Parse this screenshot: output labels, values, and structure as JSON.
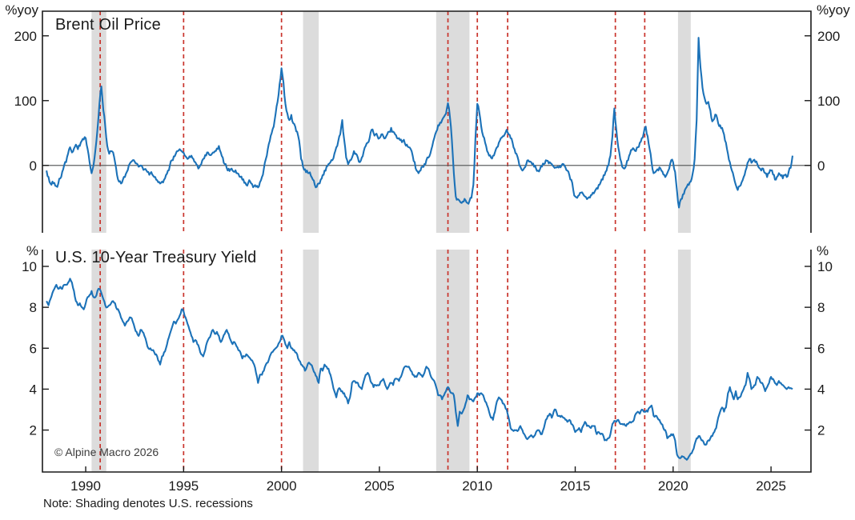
{
  "chart_data": [
    {
      "type": "line",
      "title": "Brent Oil Price",
      "unit_label": "%yoy",
      "ylim": [
        -104,
        238
      ],
      "y_ticks": [
        0,
        100,
        200
      ],
      "zero_line": true,
      "series": [
        {
          "name": "Brent Oil Price YoY %",
          "color": "#1C72B8",
          "x_start": 1988.0,
          "x_step": 0.1,
          "values": [
            -8,
            -18,
            -28,
            -25,
            -27,
            -32,
            -28,
            -20,
            -10,
            0,
            5,
            18,
            28,
            20,
            26,
            32,
            25,
            30,
            38,
            40,
            42,
            25,
            5,
            -12,
            0,
            25,
            55,
            95,
            122,
            85,
            60,
            30,
            18,
            22,
            20,
            5,
            -15,
            -25,
            -28,
            -22,
            -18,
            -10,
            0,
            5,
            8,
            6,
            3,
            -2,
            0,
            -3,
            -6,
            -8,
            -10,
            -12,
            -14,
            -18,
            -22,
            -26,
            -28,
            -25,
            -22,
            -15,
            -8,
            0,
            8,
            14,
            18,
            22,
            25,
            22,
            20,
            14,
            10,
            14,
            15,
            10,
            5,
            0,
            -3,
            2,
            10,
            16,
            20,
            17,
            16,
            20,
            22,
            26,
            30,
            20,
            12,
            2,
            -4,
            -5,
            -6,
            -8,
            -10,
            -12,
            -13,
            -18,
            -22,
            -27,
            -30,
            -27,
            -25,
            -29,
            -32,
            -33,
            -34,
            -26,
            -18,
            -5,
            10,
            25,
            38,
            50,
            60,
            80,
            98,
            125,
            150,
            128,
            95,
            80,
            70,
            78,
            65,
            60,
            52,
            38,
            10,
            -2,
            -6,
            -8,
            -12,
            -16,
            -22,
            -30,
            -33,
            -28,
            -22,
            -15,
            -8,
            -2,
            2,
            5,
            8,
            18,
            28,
            38,
            48,
            70,
            40,
            12,
            2,
            8,
            12,
            22,
            18,
            12,
            5,
            12,
            22,
            30,
            35,
            42,
            55,
            50,
            48,
            45,
            42,
            48,
            45,
            42,
            48,
            52,
            58,
            52,
            48,
            42,
            42,
            40,
            38,
            34,
            32,
            28,
            25,
            15,
            5,
            -8,
            -12,
            -8,
            -2,
            2,
            8,
            12,
            18,
            30,
            42,
            52,
            62,
            66,
            70,
            75,
            80,
            96,
            75,
            40,
            -12,
            -48,
            -52,
            -55,
            -58,
            -56,
            -54,
            -58,
            -55,
            -50,
            -30,
            40,
            95,
            82,
            60,
            45,
            35,
            22,
            15,
            12,
            15,
            20,
            28,
            35,
            42,
            45,
            48,
            55,
            48,
            42,
            35,
            25,
            18,
            8,
            -2,
            -8,
            -4,
            2,
            8,
            6,
            2,
            -2,
            -5,
            -8,
            -6,
            -2,
            2,
            8,
            7,
            5,
            2,
            -2,
            -3,
            -2,
            -1,
            0,
            2,
            -3,
            -8,
            -15,
            -22,
            -38,
            -48,
            -50,
            -46,
            -42,
            -44,
            -48,
            -52,
            -49,
            -46,
            -42,
            -40,
            -35,
            -30,
            -26,
            -22,
            -15,
            -8,
            0,
            15,
            45,
            88,
            55,
            28,
            10,
            -2,
            -5,
            0,
            8,
            18,
            24,
            25,
            22,
            28,
            35,
            42,
            50,
            60,
            45,
            25,
            5,
            -12,
            -10,
            -6,
            -3,
            -8,
            -14,
            -18,
            -12,
            -5,
            8,
            5,
            -10,
            -40,
            -65,
            -52,
            -45,
            -38,
            -33,
            -30,
            -25,
            -12,
            10,
            70,
            197,
            150,
            120,
            105,
            95,
            98,
            85,
            68,
            72,
            78,
            65,
            62,
            58,
            48,
            35,
            18,
            5,
            -8,
            -18,
            -30,
            -38,
            -32,
            -26,
            -18,
            -8,
            4,
            10,
            4,
            8,
            5,
            2,
            -4,
            -8,
            -5,
            -12,
            -18,
            -12,
            -8,
            -14,
            -22,
            -18,
            -12,
            -16,
            -20,
            -15,
            -18,
            -10,
            -4,
            15
          ]
        }
      ]
    },
    {
      "type": "line",
      "title": "U.S. 10-Year Treasury Yield",
      "unit_label": "%",
      "ylim": [
        -0.05,
        10.82
      ],
      "y_ticks": [
        2,
        4,
        6,
        8,
        10
      ],
      "zero_line": false,
      "series": [
        {
          "name": "U.S. 10-Year Treasury Yield %",
          "color": "#1C72B8",
          "x_start": 1988.0,
          "x_step": 0.1,
          "values": [
            8.3,
            8.1,
            8.4,
            8.7,
            8.9,
            9.1,
            8.9,
            9.0,
            8.9,
            9.1,
            9.1,
            9.2,
            9.4,
            9.2,
            8.8,
            8.3,
            8.1,
            8.2,
            8.0,
            7.9,
            8.2,
            8.5,
            8.6,
            8.8,
            8.5,
            8.5,
            8.8,
            8.9,
            8.7,
            8.4,
            8.1,
            8.0,
            8.1,
            8.2,
            8.3,
            8.2,
            7.9,
            7.8,
            7.5,
            7.3,
            7.1,
            7.3,
            7.4,
            7.5,
            7.3,
            7.0,
            6.8,
            6.6,
            6.9,
            6.8,
            6.6,
            6.3,
            6.0,
            6.0,
            5.9,
            5.8,
            5.7,
            5.4,
            5.2,
            5.6,
            5.8,
            6.0,
            6.4,
            6.7,
            7.0,
            7.3,
            7.2,
            7.4,
            7.6,
            7.9,
            7.8,
            7.5,
            7.2,
            6.9,
            6.6,
            6.3,
            6.4,
            6.2,
            6.0,
            5.7,
            5.6,
            5.9,
            6.3,
            6.5,
            6.7,
            6.9,
            6.7,
            6.8,
            6.6,
            6.3,
            6.5,
            6.7,
            6.9,
            6.7,
            6.4,
            6.2,
            6.3,
            6.1,
            5.9,
            5.8,
            5.5,
            5.6,
            5.7,
            5.6,
            5.5,
            5.4,
            5.2,
            4.8,
            4.3,
            4.7,
            4.7,
            4.9,
            5.2,
            5.3,
            5.6,
            5.8,
            5.9,
            6.0,
            6.1,
            6.3,
            6.6,
            6.5,
            6.2,
            6.0,
            6.3,
            6.0,
            5.9,
            5.8,
            5.7,
            5.4,
            5.2,
            5.1,
            4.9,
            5.1,
            5.3,
            5.2,
            5.0,
            4.8,
            4.6,
            4.3,
            5.0,
            4.9,
            5.2,
            5.1,
            5.0,
            4.7,
            4.3,
            3.9,
            3.6,
            4.0,
            4.0,
            3.9,
            3.8,
            3.6,
            3.3,
            3.6,
            4.3,
            4.4,
            4.3,
            4.3,
            4.1,
            4.0,
            4.4,
            4.7,
            4.8,
            4.6,
            4.3,
            4.1,
            4.2,
            4.2,
            4.2,
            4.4,
            4.5,
            4.2,
            4.0,
            4.2,
            4.3,
            4.2,
            4.5,
            4.5,
            4.4,
            4.6,
            4.9,
            5.1,
            5.1,
            5.1,
            4.9,
            4.7,
            4.6,
            4.6,
            4.8,
            4.7,
            4.6,
            4.8,
            5.1,
            5.0,
            4.7,
            4.5,
            4.4,
            4.1,
            3.7,
            3.7,
            3.5,
            3.7,
            3.9,
            4.1,
            3.9,
            3.8,
            3.7,
            2.9,
            2.2,
            2.9,
            2.8,
            3.0,
            3.3,
            3.7,
            3.5,
            3.5,
            3.4,
            3.6,
            3.8,
            3.7,
            3.8,
            3.7,
            3.4,
            3.2,
            2.9,
            2.6,
            2.5,
            2.9,
            3.4,
            3.6,
            3.5,
            3.3,
            3.2,
            3.0,
            2.6,
            2.1,
            2.0,
            2.0,
            2.0,
            2.0,
            2.2,
            2.0,
            1.8,
            1.6,
            1.6,
            1.7,
            1.7,
            1.7,
            1.9,
            2.0,
            1.9,
            1.8,
            2.1,
            2.5,
            2.7,
            2.8,
            2.6,
            2.9,
            3.0,
            2.7,
            2.7,
            2.7,
            2.6,
            2.5,
            2.4,
            2.5,
            2.3,
            2.2,
            1.9,
            2.0,
            2.1,
            1.9,
            2.2,
            2.4,
            2.2,
            2.2,
            2.1,
            2.2,
            2.2,
            1.8,
            1.9,
            1.8,
            1.8,
            1.5,
            1.5,
            1.6,
            1.8,
            2.3,
            2.45,
            2.4,
            2.5,
            2.3,
            2.3,
            2.3,
            2.2,
            2.3,
            2.4,
            2.4,
            2.5,
            2.8,
            2.9,
            2.8,
            3.0,
            2.9,
            2.9,
            2.9,
            3.1,
            3.2,
            2.7,
            2.7,
            2.6,
            2.5,
            2.3,
            2.1,
            2.0,
            1.6,
            1.7,
            1.8,
            1.8,
            1.5,
            0.8,
            0.65,
            0.65,
            0.7,
            0.62,
            0.55,
            0.7,
            0.85,
            1.0,
            1.3,
            1.6,
            1.7,
            1.6,
            1.5,
            1.3,
            1.3,
            1.5,
            1.6,
            1.7,
            1.9,
            2.1,
            2.6,
            2.9,
            3.1,
            2.9,
            3.1,
            3.8,
            4.1,
            3.8,
            3.5,
            3.9,
            3.5,
            3.6,
            3.8,
            4.0,
            4.2,
            4.8,
            4.5,
            4.0,
            4.1,
            4.2,
            4.6,
            4.5,
            4.3,
            4.2,
            3.9,
            4.1,
            4.3,
            4.6,
            4.5,
            4.3,
            4.2,
            4.4,
            4.3,
            4.2,
            4.1,
            4.0,
            4.1,
            4.05,
            4.0
          ]
        }
      ]
    }
  ],
  "x_axis": {
    "range": [
      1987.79,
      2027.04
    ],
    "ticks": [
      1990,
      1995,
      2000,
      2005,
      2010,
      2015,
      2020,
      2025
    ]
  },
  "annotations": {
    "recessions": [
      [
        1990.3,
        1991.05
      ],
      [
        2001.1,
        2001.9
      ],
      [
        2007.9,
        2009.6
      ],
      [
        2020.25,
        2020.9
      ]
    ],
    "event_lines": [
      1990.74,
      1995.0,
      2000.0,
      2008.5,
      2010.0,
      2011.55,
      2017.05,
      2018.55
    ],
    "note": "Note: Shading denotes U.S. recessions",
    "copyright": "© Alpine Macro 2026"
  },
  "colors": {
    "line": "#1C72B8",
    "event_line": "#C9342C",
    "recession_band": "#DCDCDC",
    "axis": "#1a1a1a",
    "zero_line": "#5f6062",
    "text": "#1a1a1a"
  }
}
